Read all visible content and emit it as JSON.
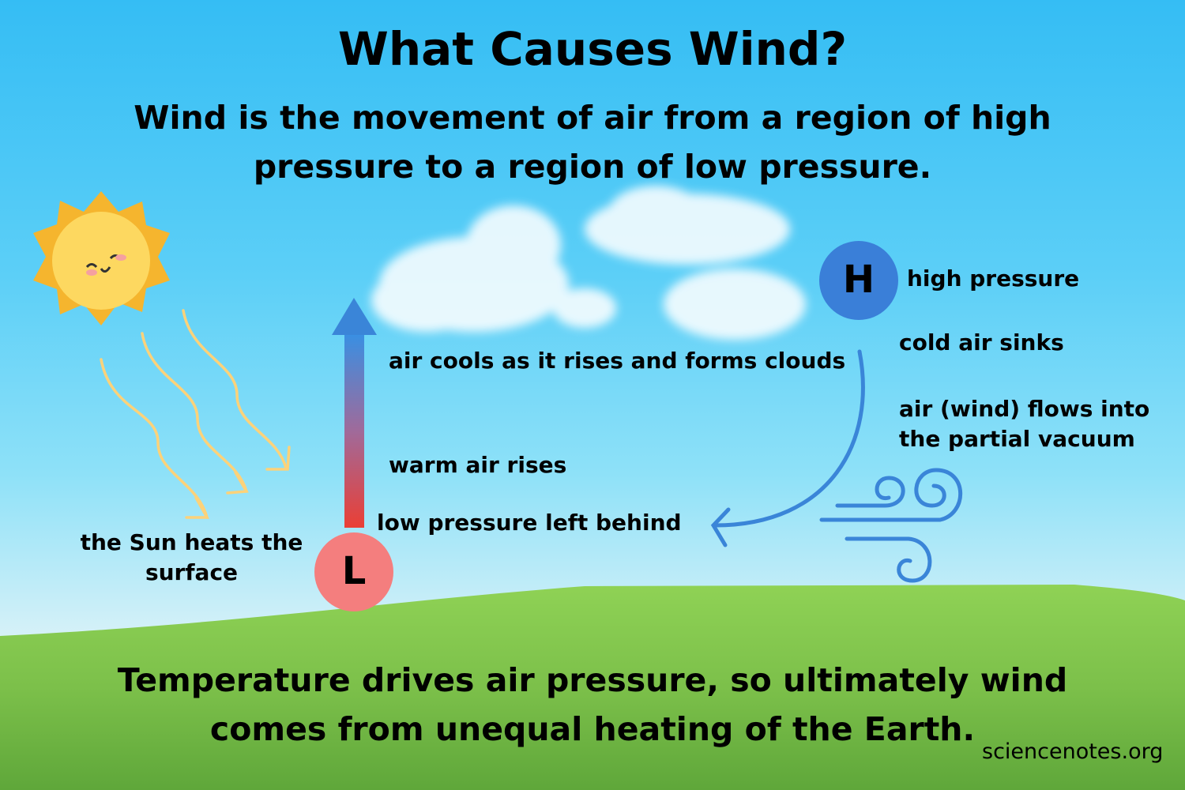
{
  "title": "What Causes Wind?",
  "subtitle_line1": "Wind is the movement of air from a region of high",
  "subtitle_line2": "pressure to a region of low pressure.",
  "labels": {
    "sun": [
      "the Sun heats the",
      "surface"
    ],
    "cools": "air cools as it rises and forms clouds",
    "warm": "warm air rises",
    "low_left": "low pressure left behind",
    "high": "high pressure",
    "sinks": "cold air sinks",
    "flows": [
      "air (wind) flows into",
      "the partial vacuum"
    ]
  },
  "markers": {
    "high": "H",
    "low": "L"
  },
  "footer_line1": "Temperature drives air pressure, so ultimately wind",
  "footer_line2": "comes from unequal heating of the Earth.",
  "credit": "sciencenotes.org",
  "colors": {
    "high": "#3a7fd8",
    "low": "#f47e7e",
    "warm": "#e8423a",
    "cool": "#3b8fe0",
    "sun": "#f8c83a",
    "grass": "#7ec24a"
  },
  "icons": [
    "sun-icon",
    "heat-ray-icon",
    "wind-icon",
    "cloud-icon"
  ]
}
